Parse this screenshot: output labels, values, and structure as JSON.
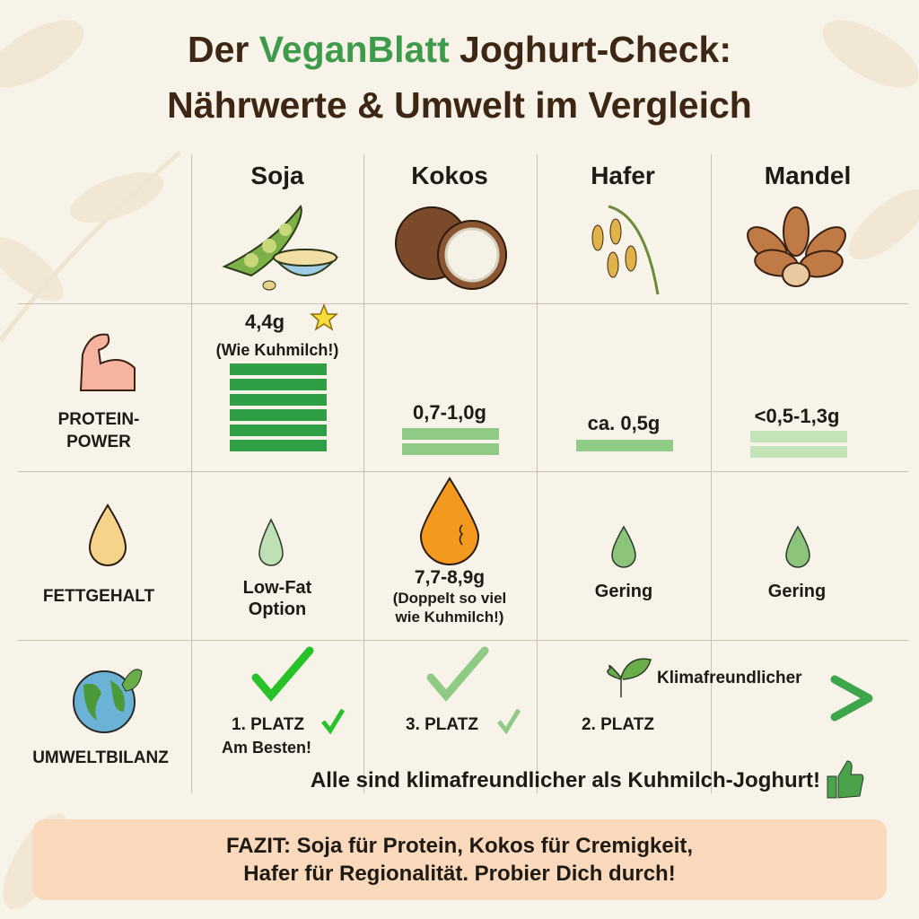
{
  "title": {
    "prefix": "Der ",
    "brand": "VeganBlatt",
    "suffix": " Joghurt-Check:",
    "line2": "Nährwerte & Umwelt im Vergleich"
  },
  "columns": [
    "Soja",
    "Kokos",
    "Hafer",
    "Mandel"
  ],
  "rows": {
    "protein": "PROTEIN-\nPOWER",
    "fat": "FETTGEHALT",
    "env": "UMWELTBILANZ"
  },
  "protein": [
    {
      "value": "4,4g",
      "note": "(Wie Kuhmilch!)",
      "bar_segments": 6,
      "color": "#2f9e44"
    },
    {
      "value": "0,7-1,0g",
      "bar_segments": 2,
      "color": "#8fcb85"
    },
    {
      "value": "ca. 0,5g",
      "bar_segments": 1,
      "color": "#8fcb85"
    },
    {
      "value": "<0,5-1,3g",
      "bar_segments": 2,
      "color": "#c3e4b8"
    }
  ],
  "fat": [
    {
      "text": "Low-Fat\nOption"
    },
    {
      "value": "7,7-8,9g",
      "note": "(Doppelt so viel\nwie Kuhmilch!)"
    },
    {
      "text": "Gering"
    },
    {
      "text": "Gering"
    }
  ],
  "env": {
    "arrow_label": "Klimafreundlicher",
    "ranks": [
      "1. PLATZ",
      "3. PLATZ",
      "2. PLATZ"
    ],
    "best_note": "Am Besten!",
    "summary": "Alle sind klimafreundlicher als Kuhmilch-Joghurt!"
  },
  "fazit": {
    "line1": "FAZIT: Soja für Protein, Kokos für Cremigkeit,",
    "line2": "Hafer für Regionalität. Probier Dich durch!"
  },
  "colors": {
    "brand": "#3f9b4c",
    "title": "#3d2614",
    "fazit_bg": "#fbd9bd",
    "fat_high": "#f39a1e"
  }
}
